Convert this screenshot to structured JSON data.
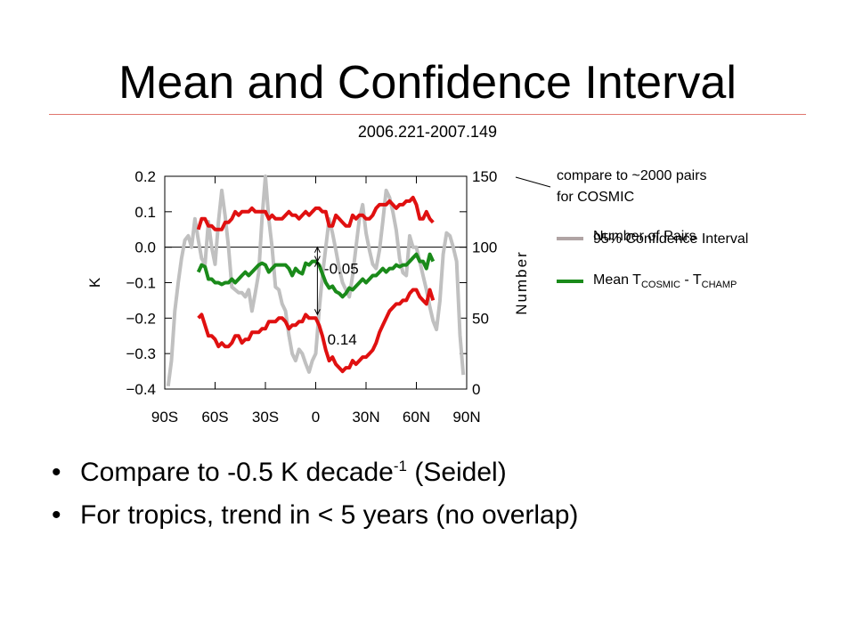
{
  "slide": {
    "title": "Mean and Confidence Interval",
    "subtitle": "2006.221-2007.149",
    "note_line1": "compare to ~2000 pairs",
    "note_line2": "for COSMIC",
    "bullets": [
      {
        "text": "Compare to -0.5 K decade",
        "sup": "-1",
        "after": " (Seidel)"
      },
      {
        "text": "For tropics, trend in < 5 years (no overlap)",
        "sup": "",
        "after": ""
      }
    ]
  },
  "legend": {
    "number_of_pairs": "Number of Pairs",
    "confidence": "95% Confidence Interval",
    "mean_prefix": "Mean T",
    "mean_sub1": "COSMIC",
    "mean_mid": " - T",
    "mean_sub2": "CHAMP"
  },
  "colors": {
    "red": "#e01010",
    "green": "#1a8a1a",
    "gray": "#c0c0c0",
    "legend_gray": "#b0a4a4",
    "rule": "#e0766e"
  },
  "chart_data": {
    "type": "line",
    "xlim": [
      -90,
      90
    ],
    "x_ticks": [
      -90,
      -60,
      -30,
      0,
      30,
      60,
      90
    ],
    "x_tick_labels": [
      "90S",
      "60S",
      "30S",
      "0",
      "30N",
      "60N",
      "90N"
    ],
    "ylabel": "K",
    "ylim": [
      -0.4,
      0.2
    ],
    "y_ticks": [
      0.2,
      0.1,
      0.0,
      -0.1,
      -0.2,
      -0.3,
      -0.4
    ],
    "y_tick_labels": [
      "0.2",
      "0.1",
      "0.0",
      "−0.1",
      "−0.2",
      "−0.3",
      "−0.4"
    ],
    "y2label": "Number",
    "y2lim": [
      0,
      150
    ],
    "y2_ticks": [
      150,
      100,
      50,
      0
    ],
    "y2_tick_labels": [
      "150",
      "100",
      "50",
      "0"
    ],
    "annotations": [
      {
        "text": "-0.05",
        "x": 5,
        "y": -0.06
      },
      {
        "text": "0.14",
        "x": 7,
        "y": -0.26
      }
    ],
    "series": [
      {
        "name": "Number of Pairs",
        "axis": "right",
        "color": "#c0c0c0",
        "x": [
          -88,
          -86,
          -84,
          -82,
          -80,
          -78,
          -76,
          -74,
          -72,
          -70,
          -68,
          -66,
          -64,
          -62,
          -60,
          -58,
          -56,
          -54,
          -52,
          -50,
          -48,
          -46,
          -44,
          -42,
          -40,
          -38,
          -36,
          -34,
          -32,
          -30,
          -28,
          -26,
          -24,
          -22,
          -20,
          -18,
          -16,
          -14,
          -12,
          -10,
          -8,
          -6,
          -4,
          -2,
          0,
          2,
          4,
          6,
          8,
          10,
          12,
          14,
          16,
          18,
          20,
          22,
          24,
          26,
          28,
          30,
          32,
          34,
          36,
          38,
          40,
          42,
          44,
          46,
          48,
          50,
          52,
          54,
          56,
          58,
          60,
          62,
          64,
          66,
          68,
          70,
          72,
          74,
          76,
          78,
          80,
          82,
          84,
          86,
          88
        ],
        "values": [
          2,
          20,
          55,
          75,
          92,
          105,
          108,
          100,
          120,
          105,
          92,
          88,
          118,
          100,
          88,
          118,
          140,
          122,
          100,
          72,
          70,
          68,
          68,
          65,
          70,
          55,
          68,
          82,
          120,
          150,
          120,
          100,
          72,
          70,
          60,
          55,
          38,
          25,
          20,
          28,
          25,
          18,
          12,
          20,
          25,
          55,
          80,
          100,
          120,
          110,
          98,
          85,
          75,
          70,
          65,
          80,
          100,
          120,
          130,
          110,
          98,
          88,
          85,
          98,
          118,
          140,
          135,
          125,
          112,
          92,
          82,
          80,
          108,
          100,
          100,
          90,
          80,
          70,
          58,
          48,
          42,
          62,
          95,
          110,
          108,
          100,
          90,
          38,
          10
        ]
      },
      {
        "name": "95% Confidence Interval upper",
        "axis": "left",
        "color": "#e01010",
        "x": [
          -70,
          -68,
          -66,
          -64,
          -62,
          -60,
          -58,
          -56,
          -54,
          -52,
          -50,
          -48,
          -46,
          -44,
          -42,
          -40,
          -38,
          -36,
          -34,
          -32,
          -30,
          -28,
          -26,
          -24,
          -22,
          -20,
          -18,
          -16,
          -14,
          -12,
          -10,
          -8,
          -6,
          -4,
          -2,
          0,
          2,
          4,
          6,
          8,
          10,
          12,
          14,
          16,
          18,
          20,
          22,
          24,
          26,
          28,
          30,
          32,
          34,
          36,
          38,
          40,
          42,
          44,
          46,
          48,
          50,
          52,
          54,
          56,
          58,
          60,
          62,
          64,
          66,
          68,
          70
        ],
        "values": [
          0.05,
          0.08,
          0.08,
          0.06,
          0.06,
          0.05,
          0.05,
          0.05,
          0.07,
          0.07,
          0.08,
          0.1,
          0.09,
          0.1,
          0.1,
          0.1,
          0.11,
          0.1,
          0.1,
          0.1,
          0.1,
          0.08,
          0.09,
          0.08,
          0.08,
          0.08,
          0.09,
          0.1,
          0.09,
          0.09,
          0.08,
          0.09,
          0.1,
          0.09,
          0.1,
          0.11,
          0.11,
          0.1,
          0.1,
          0.06,
          0.06,
          0.09,
          0.08,
          0.07,
          0.06,
          0.06,
          0.09,
          0.08,
          0.09,
          0.09,
          0.08,
          0.08,
          0.09,
          0.11,
          0.12,
          0.12,
          0.12,
          0.13,
          0.12,
          0.11,
          0.12,
          0.12,
          0.13,
          0.13,
          0.14,
          0.12,
          0.08,
          0.08,
          0.1,
          0.08,
          0.07
        ]
      },
      {
        "name": "Mean T_COSMIC - T_CHAMP",
        "axis": "left",
        "color": "#1a8a1a",
        "x": [
          -70,
          -68,
          -66,
          -64,
          -62,
          -60,
          -58,
          -56,
          -54,
          -52,
          -50,
          -48,
          -46,
          -44,
          -42,
          -40,
          -38,
          -36,
          -34,
          -32,
          -30,
          -28,
          -26,
          -24,
          -22,
          -20,
          -18,
          -16,
          -14,
          -12,
          -10,
          -8,
          -6,
          -4,
          -2,
          0,
          2,
          4,
          6,
          8,
          10,
          12,
          14,
          16,
          18,
          20,
          22,
          24,
          26,
          28,
          30,
          32,
          34,
          36,
          38,
          40,
          42,
          44,
          46,
          48,
          50,
          52,
          54,
          56,
          58,
          60,
          62,
          64,
          66,
          68,
          70
        ],
        "values": [
          -0.07,
          -0.05,
          -0.055,
          -0.09,
          -0.09,
          -0.1,
          -0.1,
          -0.105,
          -0.1,
          -0.1,
          -0.09,
          -0.1,
          -0.09,
          -0.08,
          -0.07,
          -0.08,
          -0.07,
          -0.06,
          -0.05,
          -0.045,
          -0.05,
          -0.07,
          -0.06,
          -0.05,
          -0.05,
          -0.05,
          -0.05,
          -0.06,
          -0.08,
          -0.06,
          -0.07,
          -0.075,
          -0.045,
          -0.05,
          -0.04,
          -0.04,
          -0.05,
          -0.075,
          -0.1,
          -0.115,
          -0.11,
          -0.125,
          -0.13,
          -0.14,
          -0.13,
          -0.115,
          -0.12,
          -0.11,
          -0.1,
          -0.09,
          -0.1,
          -0.09,
          -0.08,
          -0.08,
          -0.07,
          -0.06,
          -0.07,
          -0.06,
          -0.06,
          -0.05,
          -0.055,
          -0.05,
          -0.05,
          -0.04,
          -0.03,
          -0.02,
          -0.04,
          -0.04,
          -0.06,
          -0.02,
          -0.04
        ]
      },
      {
        "name": "95% Confidence Interval lower",
        "axis": "left",
        "color": "#e01010",
        "x": [
          -70,
          -68,
          -66,
          -64,
          -62,
          -60,
          -58,
          -56,
          -54,
          -52,
          -50,
          -48,
          -46,
          -44,
          -42,
          -40,
          -38,
          -36,
          -34,
          -32,
          -30,
          -28,
          -26,
          -24,
          -22,
          -20,
          -18,
          -16,
          -14,
          -12,
          -10,
          -8,
          -6,
          -4,
          -2,
          0,
          2,
          4,
          6,
          8,
          10,
          12,
          14,
          16,
          18,
          20,
          22,
          24,
          26,
          28,
          30,
          32,
          34,
          36,
          38,
          40,
          42,
          44,
          46,
          48,
          50,
          52,
          54,
          56,
          58,
          60,
          62,
          64,
          66,
          68,
          70
        ],
        "values": [
          -0.2,
          -0.19,
          -0.22,
          -0.25,
          -0.25,
          -0.26,
          -0.28,
          -0.27,
          -0.28,
          -0.28,
          -0.27,
          -0.25,
          -0.25,
          -0.27,
          -0.26,
          -0.26,
          -0.24,
          -0.24,
          -0.24,
          -0.23,
          -0.23,
          -0.21,
          -0.21,
          -0.21,
          -0.2,
          -0.2,
          -0.21,
          -0.23,
          -0.22,
          -0.22,
          -0.21,
          -0.21,
          -0.19,
          -0.2,
          -0.2,
          -0.2,
          -0.22,
          -0.25,
          -0.29,
          -0.32,
          -0.31,
          -0.33,
          -0.34,
          -0.35,
          -0.34,
          -0.34,
          -0.32,
          -0.33,
          -0.32,
          -0.31,
          -0.31,
          -0.3,
          -0.29,
          -0.27,
          -0.24,
          -0.22,
          -0.2,
          -0.18,
          -0.17,
          -0.16,
          -0.16,
          -0.15,
          -0.15,
          -0.13,
          -0.12,
          -0.12,
          -0.14,
          -0.15,
          -0.16,
          -0.12,
          -0.15
        ]
      }
    ]
  }
}
